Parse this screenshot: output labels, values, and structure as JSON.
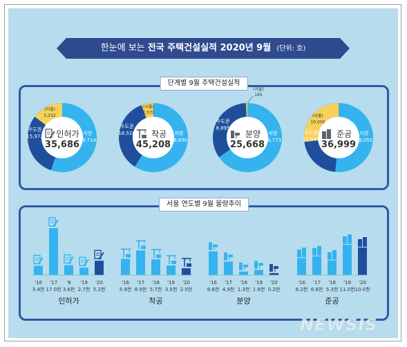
{
  "header": {
    "title_lead": "한눈에 보는",
    "title_bold": "전국 주택건설실적 2020년 9월",
    "unit": "(단위: 호)"
  },
  "section1": {
    "title": "단계별 9월 주택건설실적"
  },
  "section2": {
    "title": "서울 연도별 9월 물량추이"
  },
  "watermark": "NEWSIS",
  "colors": {
    "local": "#35b3ef",
    "capital": "#1f4f9c",
    "seoul": "#f6d25a",
    "panel": "#b6dced",
    "border": "#2d58a6"
  },
  "chart_data": [
    {
      "type": "pie",
      "title": "단계별 9월 주택건설실적",
      "donuts": [
        {
          "name": "인허가",
          "icon": "document-pen-icon",
          "total_label": "35,686",
          "slices": [
            {
              "label": "지방",
              "value_label": "19,714",
              "value": 19714
            },
            {
              "label": "수도권",
              "value_label": "15,972",
              "value": 15972
            },
            {
              "label": "(서울)",
              "value_label": "5,232",
              "value": 5232
            }
          ]
        },
        {
          "name": "착공",
          "icon": "crane-icon",
          "total_label": "45,208",
          "slices": [
            {
              "label": "지방",
              "value_label": "26,690",
              "value": 26690
            },
            {
              "label": "수도권",
              "value_label": "18,518",
              "value": 18518
            },
            {
              "label": "(서울)",
              "value_label": "2,531",
              "value": 2531
            }
          ]
        },
        {
          "name": "분양",
          "icon": "handshake-icon",
          "total_label": "25,668",
          "slices": [
            {
              "label": "지방",
              "value_label": "16,773",
              "value": 16773
            },
            {
              "label": "수도권",
              "value_label": "8,895",
              "value": 8895
            },
            {
              "label": "(서울)",
              "value_label": "165",
              "value": 165
            }
          ]
        },
        {
          "name": "준공",
          "icon": "building-icon",
          "total_label": "36,999",
          "slices": [
            {
              "label": "지방",
              "value_label": "19,055",
              "value": 19055
            },
            {
              "label": "수도권",
              "value_label": "17,944",
              "value": 17944
            },
            {
              "label": "(서울)",
              "value_label": "10,000",
              "value": 10000
            }
          ]
        }
      ]
    },
    {
      "type": "bar",
      "title": "서울 연도별 9월 물량추이",
      "groups": [
        {
          "name": "인허가",
          "categories": [
            "'16",
            "'17",
            "'8",
            "'19",
            "'20"
          ],
          "values": [
            3.4,
            17.0,
            3.6,
            2.7,
            5.2
          ],
          "value_labels": [
            "3.4천",
            "17.0천",
            "3.6천",
            "2.7천",
            "5.2천"
          ]
        },
        {
          "name": "착공",
          "categories": [
            "'16",
            "'17",
            "'18",
            "'19",
            "'20"
          ],
          "values": [
            5.9,
            8.9,
            5.7,
            3.5,
            2.5
          ],
          "value_labels": [
            "5.9천",
            "8.9천",
            "5.7천",
            "3.5천",
            "2.5천"
          ]
        },
        {
          "name": "분양",
          "categories": [
            "'16",
            "'17",
            "'18",
            "'19",
            "'20"
          ],
          "values": [
            8.6,
            4.9,
            1.3,
            1.9,
            0.2
          ],
          "value_labels": [
            "8.6천",
            "4.9천",
            "1.3천",
            "1.9천",
            "0.2천"
          ]
        },
        {
          "name": "준공",
          "categories": [
            "'16",
            "'17",
            "'18",
            "'19",
            "'20"
          ],
          "values": [
            6.2,
            6.8,
            5.3,
            11.0,
            10.0
          ],
          "value_labels": [
            "6.2천",
            "6.8천",
            "5.3천",
            "11.0천",
            "10.0천"
          ]
        }
      ]
    }
  ]
}
